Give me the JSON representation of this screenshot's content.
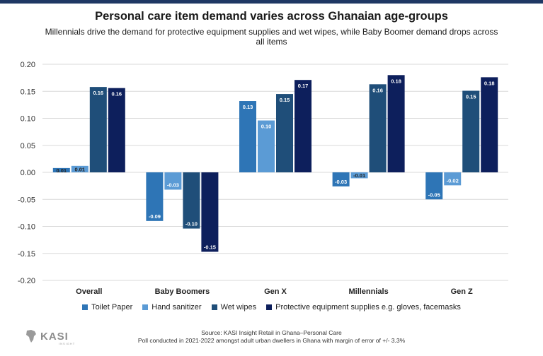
{
  "title": "Personal care item demand varies across Ghanaian age-groups",
  "subtitle": "Millennials drive the demand for protective equipment supplies and wet wipes, while Baby Boomer demand drops across all items",
  "source_line1": "Source: KASI Insight Retail in Ghana–Personal Care",
  "source_line2": "Poll conducted in 2021-2022 amongst adult urban dwellers in Ghana with margin of error of +/- 3.3%",
  "logo": {
    "text": "KASI",
    "sub": "INSIGHT"
  },
  "chart_data": {
    "type": "bar",
    "title": "Personal care item demand varies across Ghanaian age-groups",
    "xlabel": "",
    "ylabel": "",
    "ylim": [
      -0.2,
      0.2
    ],
    "yticks": [
      0.2,
      0.15,
      0.1,
      0.05,
      0.0,
      -0.05,
      -0.1,
      -0.15,
      -0.2
    ],
    "ytick_labels": [
      "0.20",
      "0.15",
      "0.10",
      "0.05",
      "0.00",
      "-0.05",
      "-0.10",
      "-0.15",
      "-0.20"
    ],
    "grid": true,
    "legend_position": "bottom",
    "categories": [
      "Overall",
      "Baby Boomers",
      "Gen X",
      "Millennials",
      "Gen Z"
    ],
    "series": [
      {
        "name": "Toilet Paper",
        "color": "#2e75b6",
        "values": [
          0.008,
          -0.09,
          0.132,
          -0.026,
          -0.05
        ],
        "labels": [
          "0.01",
          "-0.09",
          "0.13",
          "-0.03",
          "-0.05"
        ]
      },
      {
        "name": "Hand sanitizer",
        "color": "#5b9bd5",
        "values": [
          0.012,
          -0.032,
          0.096,
          -0.011,
          -0.024
        ],
        "labels": [
          "0.01",
          "-0.03",
          "0.10",
          "-0.01",
          "-0.02"
        ]
      },
      {
        "name": "Wet wipes",
        "color": "#1f4e79",
        "values": [
          0.158,
          -0.104,
          0.145,
          0.163,
          0.151
        ],
        "labels": [
          "0.16",
          "-0.10",
          "0.15",
          "0.16",
          "0.15"
        ]
      },
      {
        "name": "Protective equipment supplies e.g. gloves, facemasks",
        "color": "#0d1f5c",
        "values": [
          0.156,
          -0.147,
          0.171,
          0.18,
          0.176
        ],
        "labels": [
          "0.16",
          "-0.15",
          "0.17",
          "0.18",
          "0.18"
        ]
      }
    ]
  }
}
